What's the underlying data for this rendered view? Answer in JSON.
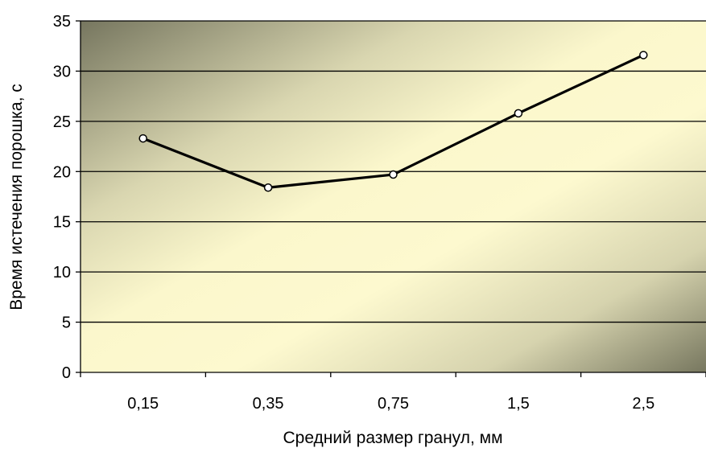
{
  "chart_data": {
    "type": "line",
    "title": "",
    "xlabel": "Средний размер гранул, мм",
    "ylabel": "Время истечения порошка, с",
    "categories": [
      "0,15",
      "0,35",
      "0,75",
      "1,5",
      "2,5"
    ],
    "series": [
      {
        "values": [
          23.3,
          18.4,
          19.7,
          25.8,
          31.6
        ]
      }
    ],
    "ylim": [
      0,
      35
    ],
    "yticks": [
      "0",
      "5",
      "10",
      "15",
      "20",
      "25",
      "30",
      "35"
    ],
    "grid": true,
    "legend": "none",
    "colors": {
      "line": "#000000",
      "marker_fill": "#ffffff",
      "grid": "#000000",
      "bg_light": "#fffbd0",
      "bg_dark": "#7a7a63"
    }
  }
}
